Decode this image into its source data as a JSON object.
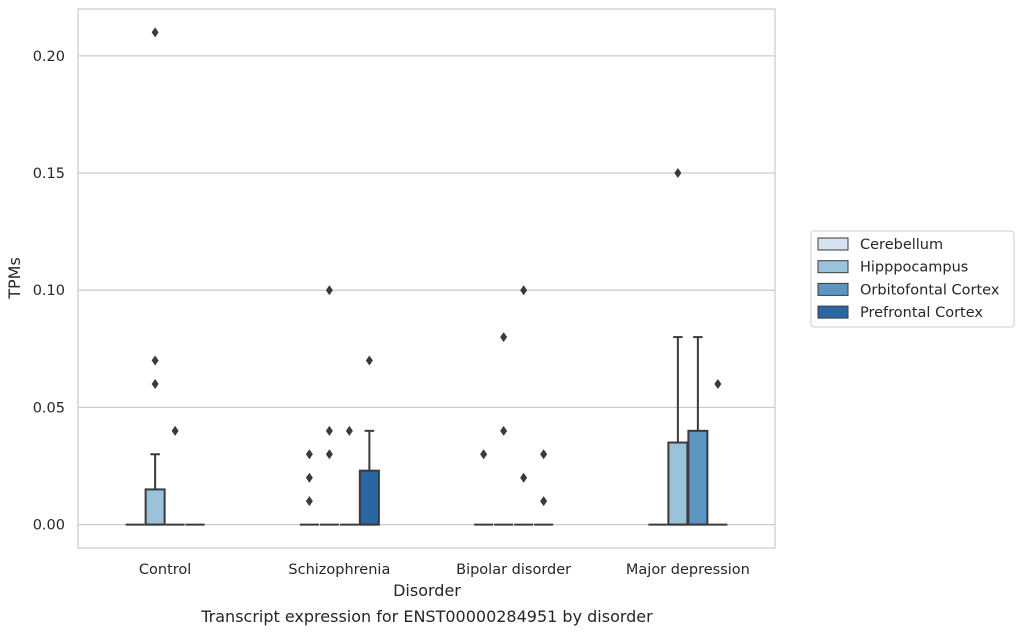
{
  "chart_data": {
    "type": "box",
    "title": "Transcript expression for ENST00000284951 by disorder",
    "xlabel": "Disorder",
    "ylabel": "TPMs",
    "ylim": [
      -0.01,
      0.22
    ],
    "yticks": [
      "0.00",
      "0.05",
      "0.10",
      "0.15",
      "0.20"
    ],
    "categories": [
      "Control",
      "Schizophrenia",
      "Bipolar disorder",
      "Major depression"
    ],
    "grid": "horizontal",
    "legend_position": "right",
    "series": [
      {
        "name": "Cerebellum",
        "color": "#d4e3ef",
        "boxes": [
          {
            "q1": 0,
            "median": 0,
            "q3": 0,
            "whislo": 0,
            "whishi": 0,
            "fliers": []
          },
          {
            "q1": 0,
            "median": 0,
            "q3": 0,
            "whislo": 0,
            "whishi": 0,
            "fliers": [
              0.01,
              0.02,
              0.03
            ]
          },
          {
            "q1": 0,
            "median": 0,
            "q3": 0,
            "whislo": 0,
            "whishi": 0,
            "fliers": [
              0.03
            ]
          },
          {
            "q1": 0,
            "median": 0,
            "q3": 0,
            "whislo": 0,
            "whishi": 0,
            "fliers": []
          }
        ]
      },
      {
        "name": "Hipppocampus",
        "color": "#9ac2db",
        "boxes": [
          {
            "q1": 0,
            "median": 0,
            "q3": 0.015,
            "whislo": 0,
            "whishi": 0.03,
            "fliers": [
              0.06,
              0.07,
              0.21
            ]
          },
          {
            "q1": 0,
            "median": 0,
            "q3": 0,
            "whislo": 0,
            "whishi": 0,
            "fliers": [
              0.03,
              0.04,
              0.1
            ]
          },
          {
            "q1": 0,
            "median": 0,
            "q3": 0,
            "whislo": 0,
            "whishi": 0,
            "fliers": [
              0.04,
              0.08
            ]
          },
          {
            "q1": 0,
            "median": 0,
            "q3": 0.035,
            "whislo": 0,
            "whishi": 0.08,
            "fliers": [
              0.15
            ]
          }
        ]
      },
      {
        "name": "Orbitofontal Cortex",
        "color": "#5a96c1",
        "boxes": [
          {
            "q1": 0,
            "median": 0,
            "q3": 0,
            "whislo": 0,
            "whishi": 0,
            "fliers": [
              0.04
            ]
          },
          {
            "q1": 0,
            "median": 0,
            "q3": 0,
            "whislo": 0,
            "whishi": 0,
            "fliers": [
              0.04
            ]
          },
          {
            "q1": 0,
            "median": 0,
            "q3": 0,
            "whislo": 0,
            "whishi": 0,
            "fliers": [
              0.02,
              0.1
            ]
          },
          {
            "q1": 0,
            "median": 0,
            "q3": 0.04,
            "whislo": 0,
            "whishi": 0.08,
            "fliers": []
          }
        ]
      },
      {
        "name": "Prefrontal Cortex",
        "color": "#2a67a2",
        "boxes": [
          {
            "q1": 0,
            "median": 0,
            "q3": 0,
            "whislo": 0,
            "whishi": 0,
            "fliers": []
          },
          {
            "q1": 0,
            "median": 0,
            "q3": 0.023,
            "whislo": 0,
            "whishi": 0.04,
            "fliers": [
              0.07
            ]
          },
          {
            "q1": 0,
            "median": 0,
            "q3": 0,
            "whislo": 0,
            "whishi": 0,
            "fliers": [
              0.01,
              0.03
            ]
          },
          {
            "q1": 0,
            "median": 0,
            "q3": 0,
            "whislo": 0,
            "whishi": 0,
            "fliers": [
              0.06
            ]
          }
        ]
      }
    ]
  }
}
